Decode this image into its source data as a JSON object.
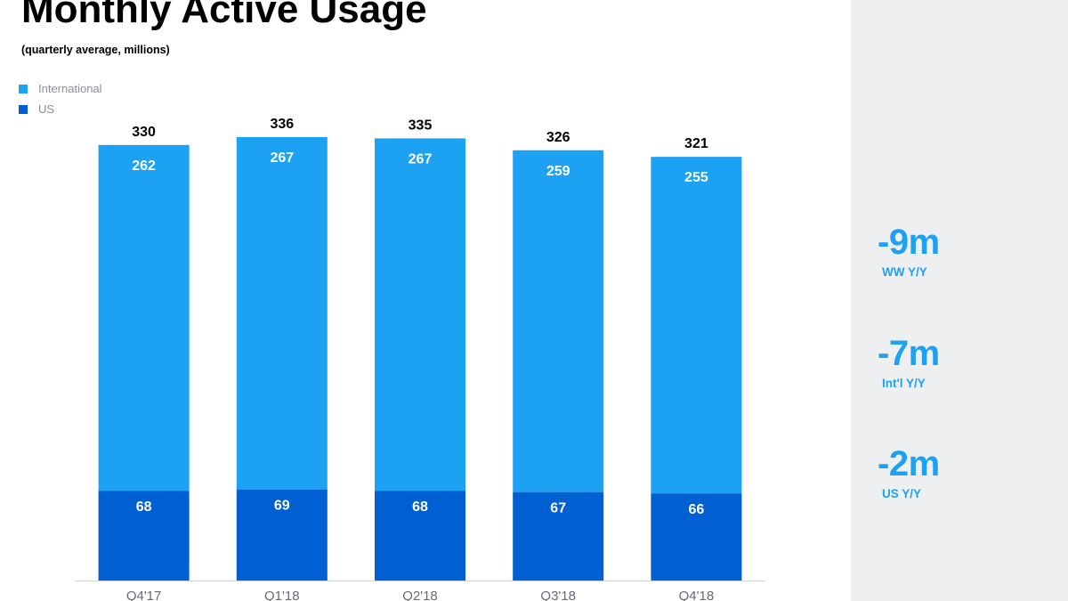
{
  "title": "Monthly Active Usage",
  "subtitle": "(quarterly average, millions)",
  "legend": [
    {
      "label": "International",
      "color": "#1da1f2"
    },
    {
      "label": "US",
      "color": "#005fd1"
    }
  ],
  "chart_data": {
    "type": "bar",
    "stacked": true,
    "categories": [
      "Q4'17",
      "Q1'18",
      "Q2'18",
      "Q3'18",
      "Q4'18"
    ],
    "series": [
      {
        "name": "US",
        "values": [
          68,
          69,
          68,
          67,
          66
        ],
        "color": "#005fd1"
      },
      {
        "name": "International",
        "values": [
          262,
          267,
          267,
          259,
          255
        ],
        "color": "#1da1f2"
      }
    ],
    "totals": [
      330,
      336,
      335,
      326,
      321
    ],
    "title": "Monthly Active Usage",
    "subtitle": "(quarterly average, millions)",
    "xlabel": "",
    "ylabel": "",
    "ylim": [
      0,
      340
    ],
    "grid": false,
    "legend_position": "top-left"
  },
  "stats": [
    {
      "value": "-9m",
      "label": "WW Y/Y"
    },
    {
      "value": "-7m",
      "label": "Int'l Y/Y"
    },
    {
      "value": "-2m",
      "label": "US Y/Y"
    }
  ],
  "colors": {
    "accent": "#1da1f2",
    "dark_blue": "#005fd1",
    "panel_bg": "#eeeff1"
  }
}
